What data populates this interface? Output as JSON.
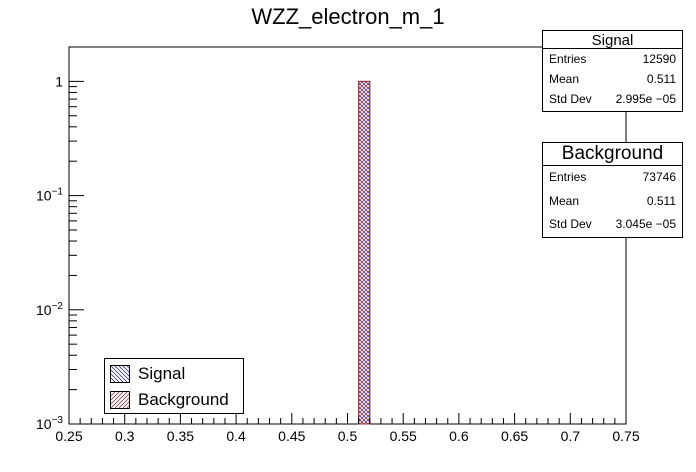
{
  "chart_data": {
    "type": "bar",
    "title": "WZZ_electron_m_1",
    "xlabel": "",
    "ylabel": "",
    "xlim": [
      0.25,
      0.75
    ],
    "ylim": [
      0.001,
      2
    ],
    "yscale": "log",
    "x_ticks": [
      "0.25",
      "0.3",
      "0.35",
      "0.4",
      "0.45",
      "0.5",
      "0.55",
      "0.6",
      "0.65",
      "0.7",
      "0.75"
    ],
    "y_ticks": [
      {
        "value": 1,
        "base": "1",
        "exp": ""
      },
      {
        "value": 0.1,
        "base": "10",
        "exp": "−1"
      },
      {
        "value": 0.01,
        "base": "10",
        "exp": "−2"
      },
      {
        "value": 0.001,
        "base": "10",
        "exp": "−3"
      }
    ],
    "bins": 50,
    "series": [
      {
        "name": "Signal",
        "color": "#3333aa",
        "hatch": "diag-back",
        "bin_low": 0.51,
        "bin_high": 0.52,
        "value": 1.0
      },
      {
        "name": "Background",
        "color": "#aa3333",
        "hatch": "diag-fwd",
        "bin_low": 0.51,
        "bin_high": 0.52,
        "value": 1.0
      }
    ],
    "legend_position": "bottom-left"
  },
  "stats": {
    "signal": {
      "title": "Signal",
      "entries_label": "Entries",
      "entries": "12590",
      "mean_label": "Mean",
      "mean": "0.511",
      "std_label": "Std Dev",
      "std": "2.995e −05"
    },
    "background": {
      "title": "Background",
      "entries_label": "Entries",
      "entries": "73746",
      "mean_label": "Mean",
      "mean": "0.511",
      "std_label": "Std Dev",
      "std": "3.045e −05"
    }
  },
  "legend": {
    "signal_label": "Signal",
    "background_label": "Background"
  }
}
